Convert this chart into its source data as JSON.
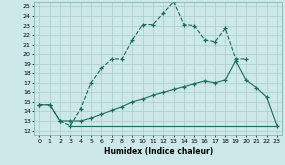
{
  "xlabel": "Humidex (Indice chaleur)",
  "bg_color": "#cce8e8",
  "grid_color": "#aacccc",
  "line_color": "#1a6b5a",
  "xlim": [
    -0.5,
    23.5
  ],
  "ylim": [
    11.5,
    25.5
  ],
  "yticks": [
    12,
    13,
    14,
    15,
    16,
    17,
    18,
    19,
    20,
    21,
    22,
    23,
    24,
    25
  ],
  "xticks": [
    0,
    1,
    2,
    3,
    4,
    5,
    6,
    7,
    8,
    9,
    10,
    11,
    12,
    13,
    14,
    15,
    16,
    17,
    18,
    19,
    20,
    21,
    22,
    23
  ],
  "line1_x": [
    0,
    1,
    2,
    3,
    4,
    5,
    6,
    7,
    8,
    9,
    10,
    11,
    12,
    13,
    14,
    15,
    16,
    17,
    18,
    19,
    20
  ],
  "line1_y": [
    14.7,
    14.7,
    13.0,
    12.5,
    14.3,
    17.0,
    18.5,
    19.5,
    19.5,
    21.5,
    23.1,
    23.1,
    24.3,
    25.5,
    23.1,
    23.0,
    21.5,
    21.3,
    22.7,
    19.5,
    19.5
  ],
  "line2_x": [
    0,
    1,
    2,
    3,
    4,
    5,
    6,
    7,
    8,
    9,
    10,
    11,
    12,
    13,
    14,
    15,
    16,
    17,
    18,
    19,
    20,
    21,
    22,
    23
  ],
  "line2_y": [
    14.7,
    14.7,
    13.0,
    13.0,
    13.0,
    13.3,
    13.7,
    14.1,
    14.5,
    15.0,
    15.3,
    15.7,
    16.0,
    16.3,
    16.6,
    16.9,
    17.2,
    17.0,
    17.3,
    19.3,
    17.3,
    16.5,
    15.5,
    12.5
  ],
  "line3_x": [
    3,
    4,
    5,
    6,
    7,
    8,
    9,
    10,
    11,
    12,
    13,
    14,
    15,
    16,
    17,
    18,
    19,
    20,
    21,
    22,
    23
  ],
  "line3_y": [
    12.5,
    12.5,
    12.5,
    12.5,
    12.5,
    12.5,
    12.5,
    12.5,
    12.5,
    12.5,
    12.5,
    12.5,
    12.5,
    12.5,
    12.5,
    12.5,
    12.5,
    12.5,
    12.5,
    12.5,
    12.5
  ]
}
